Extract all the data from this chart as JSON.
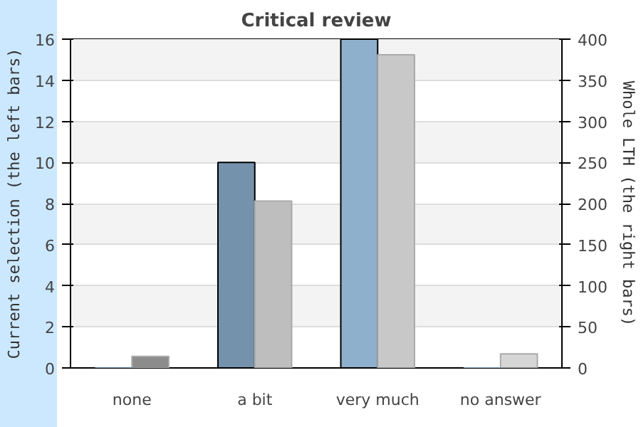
{
  "chart_data": {
    "type": "bar",
    "title": "Critical review",
    "categories": [
      "none",
      "a bit",
      "very much",
      "no answer"
    ],
    "ylabel": "Current selection (the left bars)",
    "y2label": "Whole LTH (the right bars)",
    "series": [
      {
        "colors": [
          "#7592ad",
          "#7592ad",
          "#8fb0cc",
          "#8fb0cc"
        ],
        "values": [
          0,
          10,
          16,
          0
        ]
      },
      {
        "axis": "y2",
        "colors": [
          "#8c8c8c",
          "#bebebe",
          "#c8c8c8",
          "#d6d6d6"
        ],
        "values": [
          14,
          203,
          381,
          17
        ]
      }
    ],
    "ylim": [
      0,
      16
    ],
    "yticks": [
      0,
      2,
      4,
      6,
      8,
      10,
      12,
      14,
      16
    ],
    "y2lim": [
      0,
      400
    ],
    "y2ticks": [
      0,
      50,
      100,
      150,
      200,
      250,
      300,
      350,
      400
    ],
    "grid": "y"
  }
}
